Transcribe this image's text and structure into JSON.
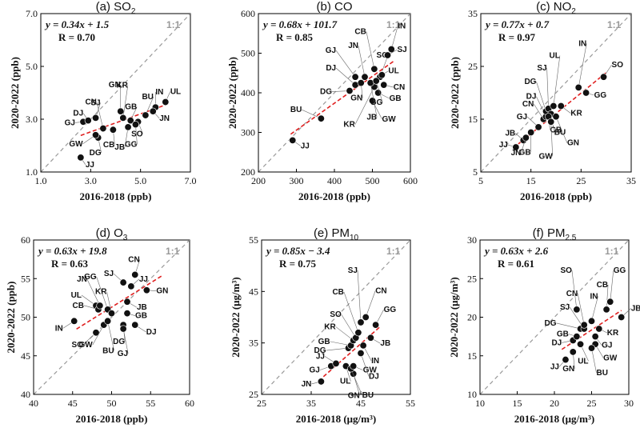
{
  "chart_data": [
    {
      "type": "scatter",
      "title_main": "(a) SO",
      "title_sub": "2",
      "title_tail": "",
      "xlabel": "2016-2018 (ppb)",
      "ylabel": "2020-2022 (ppb)",
      "xlim": [
        1.0,
        7.0
      ],
      "ylim": [
        1.0,
        7.0
      ],
      "xticks": [
        "1.0",
        "3.0",
        "5.0",
        "7.0"
      ],
      "yticks": [
        "1.0",
        "3.0",
        "5.0",
        "7.0"
      ],
      "equation": "y = 0.34x + 1.5",
      "r_text": "R = 0.70",
      "one_to_one": "1:1",
      "fit": {
        "slope": 0.34,
        "intercept": 1.5,
        "x_range": [
          2.6,
          6.1
        ]
      },
      "points": [
        {
          "label": "GJ",
          "x": 2.7,
          "y": 2.9
        },
        {
          "label": "DJ",
          "x": 2.9,
          "y": 2.95
        },
        {
          "label": "SJ",
          "x": 3.2,
          "y": 3.05
        },
        {
          "label": "CN",
          "x": 3.5,
          "y": 2.65
        },
        {
          "label": "GN",
          "x": 4.2,
          "y": 3.3
        },
        {
          "label": "KR",
          "x": 4.3,
          "y": 3.05
        },
        {
          "label": "GB",
          "x": 4.6,
          "y": 2.95
        },
        {
          "label": "BU",
          "x": 5.2,
          "y": 3.15
        },
        {
          "label": "IN",
          "x": 5.6,
          "y": 3.45
        },
        {
          "label": "UL",
          "x": 6.0,
          "y": 3.65
        },
        {
          "label": "JN",
          "x": 5.5,
          "y": 3.3
        },
        {
          "label": "SO",
          "x": 4.9,
          "y": 2.9
        },
        {
          "label": "GG",
          "x": 4.8,
          "y": 2.8
        },
        {
          "label": "JB",
          "x": 4.5,
          "y": 2.7
        },
        {
          "label": "CB",
          "x": 3.9,
          "y": 2.6
        },
        {
          "label": "DG",
          "x": 3.3,
          "y": 2.3
        },
        {
          "label": "GW",
          "x": 3.2,
          "y": 2.4
        },
        {
          "label": "JJ",
          "x": 2.6,
          "y": 1.55
        }
      ]
    },
    {
      "type": "scatter",
      "title_main": "(b) CO",
      "title_sub": "",
      "title_tail": "",
      "xlabel": "2016-2018 (ppb)",
      "ylabel": "2020-2022 (ppb)",
      "xlim": [
        200,
        600
      ],
      "ylim": [
        200,
        600
      ],
      "xticks": [
        "200",
        "300",
        "400",
        "500",
        "600"
      ],
      "yticks": [
        "200",
        "300",
        "400",
        "500",
        "600"
      ],
      "equation": "y = 0.68x + 101.7",
      "r_text": "R = 0.85",
      "one_to_one": "1:1",
      "fit": {
        "slope": 0.68,
        "intercept": 101.7,
        "x_range": [
          285,
          555
        ]
      },
      "points": [
        {
          "label": "JJ",
          "x": 290,
          "y": 280
        },
        {
          "label": "BU",
          "x": 365,
          "y": 335
        },
        {
          "label": "DG",
          "x": 440,
          "y": 405
        },
        {
          "label": "DJ",
          "x": 455,
          "y": 420
        },
        {
          "label": "GJ",
          "x": 455,
          "y": 440
        },
        {
          "label": "JN",
          "x": 480,
          "y": 440
        },
        {
          "label": "GN",
          "x": 470,
          "y": 425
        },
        {
          "label": "KR",
          "x": 505,
          "y": 415
        },
        {
          "label": "CB",
          "x": 505,
          "y": 460
        },
        {
          "label": "SO",
          "x": 520,
          "y": 440
        },
        {
          "label": "IN",
          "x": 550,
          "y": 510
        },
        {
          "label": "SJ",
          "x": 540,
          "y": 495
        },
        {
          "label": "UL",
          "x": 525,
          "y": 445
        },
        {
          "label": "CN",
          "x": 530,
          "y": 420
        },
        {
          "label": "GB",
          "x": 515,
          "y": 400
        },
        {
          "label": "GW",
          "x": 500,
          "y": 380
        },
        {
          "label": "JB",
          "x": 495,
          "y": 425
        },
        {
          "label": "GG",
          "x": 510,
          "y": 430
        }
      ]
    },
    {
      "type": "scatter",
      "title_main": "(c) NO",
      "title_sub": "2",
      "title_tail": "",
      "xlabel": "2016-2018 (ppb)",
      "ylabel": "2020-2022 (ppb)",
      "xlim": [
        5,
        35
      ],
      "ylim": [
        5,
        35
      ],
      "xticks": [
        "5",
        "15",
        "25",
        "35"
      ],
      "yticks": [
        "5",
        "15",
        "25",
        "35"
      ],
      "equation": "y = 0.77x + 0.7",
      "r_text": "R = 0.97",
      "one_to_one": "1:1",
      "fit": {
        "slope": 0.77,
        "intercept": 0.7,
        "x_range": [
          11.5,
          30
        ]
      },
      "points": [
        {
          "label": "JJ",
          "x": 12,
          "y": 9.7
        },
        {
          "label": "JB",
          "x": 13.5,
          "y": 11
        },
        {
          "label": "JN",
          "x": 14,
          "y": 11.5
        },
        {
          "label": "GB",
          "x": 15,
          "y": 12.5
        },
        {
          "label": "GJ",
          "x": 16.5,
          "y": 13.5
        },
        {
          "label": "CN",
          "x": 17.5,
          "y": 15
        },
        {
          "label": "DJ",
          "x": 18,
          "y": 15.5
        },
        {
          "label": "DG",
          "x": 18,
          "y": 16.5
        },
        {
          "label": "SJ",
          "x": 18.5,
          "y": 17
        },
        {
          "label": "UL",
          "x": 19.5,
          "y": 17.5
        },
        {
          "label": "IN",
          "x": 24.5,
          "y": 21
        },
        {
          "label": "SO",
          "x": 29.5,
          "y": 23
        },
        {
          "label": "GG",
          "x": 26,
          "y": 20
        },
        {
          "label": "KR",
          "x": 21,
          "y": 17.5
        },
        {
          "label": "BU",
          "x": 19,
          "y": 16
        },
        {
          "label": "CB",
          "x": 18.5,
          "y": 15.5
        },
        {
          "label": "GN",
          "x": 20,
          "y": 15.5
        },
        {
          "label": "GW",
          "x": 19,
          "y": 14.5
        }
      ]
    },
    {
      "type": "scatter",
      "title_main": "(d) O",
      "title_sub": "3",
      "title_tail": "",
      "xlabel": "2016-2018 (ppb)",
      "ylabel": "2020-2022 (ppb)",
      "xlim": [
        40,
        60
      ],
      "ylim": [
        40,
        60
      ],
      "xticks": [
        "40",
        "45",
        "50",
        "55",
        "60"
      ],
      "yticks": [
        "40",
        "45",
        "50",
        "55",
        "60"
      ],
      "equation": "y = 0.63x + 19.8",
      "r_text": "R = 0.63",
      "one_to_one": "1:1",
      "fit": {
        "slope": 0.63,
        "intercept": 19.8,
        "x_range": [
          45.5,
          56.5
        ]
      },
      "points": [
        {
          "label": "IN",
          "x": 45.2,
          "y": 49.5
        },
        {
          "label": "SO",
          "x": 48,
          "y": 48
        },
        {
          "label": "GW",
          "x": 49,
          "y": 49
        },
        {
          "label": "UL",
          "x": 48,
          "y": 51.5
        },
        {
          "label": "CB",
          "x": 48.3,
          "y": 51
        },
        {
          "label": "JN",
          "x": 48.5,
          "y": 51.5
        },
        {
          "label": "GG",
          "x": 49.5,
          "y": 51
        },
        {
          "label": "KR",
          "x": 50,
          "y": 50.5
        },
        {
          "label": "BU",
          "x": 49.5,
          "y": 49.5
        },
        {
          "label": "SJ",
          "x": 51.5,
          "y": 54.5
        },
        {
          "label": "CN",
          "x": 53,
          "y": 55.5
        },
        {
          "label": "JJ",
          "x": 52.5,
          "y": 54
        },
        {
          "label": "GN",
          "x": 54.5,
          "y": 53.5
        },
        {
          "label": "JB",
          "x": 52,
          "y": 52
        },
        {
          "label": "GB",
          "x": 52,
          "y": 50.5
        },
        {
          "label": "DJ",
          "x": 53,
          "y": 49
        },
        {
          "label": "DG",
          "x": 51.5,
          "y": 49
        },
        {
          "label": "GJ",
          "x": 51.5,
          "y": 48.5
        }
      ]
    },
    {
      "type": "scatter",
      "title_main": "(e) PM",
      "title_sub": "10",
      "title_tail": "",
      "xlabel": "2016-2018 (μg/m³)",
      "ylabel": "2020-2022 (μg/m³)",
      "xlim": [
        25,
        55
      ],
      "ylim": [
        25,
        55
      ],
      "xticks": [
        "25",
        "35",
        "45",
        "55"
      ],
      "yticks": [
        "25",
        "35",
        "45",
        "55"
      ],
      "equation": "y = 0.85x − 3.4",
      "r_text": "R = 0.75",
      "one_to_one": "1:1",
      "fit": {
        "slope": 0.85,
        "intercept": -3.4,
        "x_range": [
          36.5,
          49
        ]
      },
      "points": [
        {
          "label": "JN",
          "x": 37,
          "y": 27.5
        },
        {
          "label": "GJ",
          "x": 39,
          "y": 30.5
        },
        {
          "label": "JJ",
          "x": 40,
          "y": 31
        },
        {
          "label": "UL",
          "x": 42,
          "y": 30.5
        },
        {
          "label": "GN",
          "x": 43.5,
          "y": 29
        },
        {
          "label": "BU",
          "x": 43,
          "y": 30
        },
        {
          "label": "GW",
          "x": 43.5,
          "y": 30.5
        },
        {
          "label": "DG",
          "x": 42.5,
          "y": 34
        },
        {
          "label": "GB",
          "x": 43,
          "y": 34.5
        },
        {
          "label": "KR",
          "x": 43.5,
          "y": 35.5
        },
        {
          "label": "SO",
          "x": 44,
          "y": 36
        },
        {
          "label": "CB",
          "x": 44.5,
          "y": 37
        },
        {
          "label": "SJ",
          "x": 45,
          "y": 39
        },
        {
          "label": "CN",
          "x": 46,
          "y": 40
        },
        {
          "label": "GG",
          "x": 48,
          "y": 38.5
        },
        {
          "label": "JB",
          "x": 47,
          "y": 36
        },
        {
          "label": "IN",
          "x": 45.5,
          "y": 34.5
        },
        {
          "label": "DJ",
          "x": 45,
          "y": 33
        }
      ]
    },
    {
      "type": "scatter",
      "title_main": "(f) PM",
      "title_sub": "2.5",
      "title_tail": "",
      "xlabel": "2016-2018 (μg/m³)",
      "ylabel": "2020-2022 (μg/m³)",
      "xlim": [
        10,
        30
      ],
      "ylim": [
        10,
        30
      ],
      "xticks": [
        "10",
        "15",
        "20",
        "25",
        "30"
      ],
      "yticks": [
        "10",
        "15",
        "20",
        "25",
        "30"
      ],
      "equation": "y = 0.63x + 2.6",
      "r_text": "R = 0.61",
      "one_to_one": "1:1",
      "fit": {
        "slope": 0.63,
        "intercept": 2.6,
        "x_range": [
          21,
          29
        ]
      },
      "points": [
        {
          "label": "JJ",
          "x": 21.5,
          "y": 14.5
        },
        {
          "label": "GN",
          "x": 22.5,
          "y": 15.5
        },
        {
          "label": "UL",
          "x": 23.5,
          "y": 16.5
        },
        {
          "label": "DJ",
          "x": 22.5,
          "y": 17
        },
        {
          "label": "GB",
          "x": 23,
          "y": 17.5
        },
        {
          "label": "DG",
          "x": 23.5,
          "y": 18.5
        },
        {
          "label": "SJ",
          "x": 24,
          "y": 18.5
        },
        {
          "label": "CN",
          "x": 24,
          "y": 19
        },
        {
          "label": "SO",
          "x": 23,
          "y": 21
        },
        {
          "label": "IN",
          "x": 25,
          "y": 19.5
        },
        {
          "label": "CB",
          "x": 27,
          "y": 21
        },
        {
          "label": "GG",
          "x": 27.5,
          "y": 22
        },
        {
          "label": "JB",
          "x": 29,
          "y": 20
        },
        {
          "label": "KR",
          "x": 26,
          "y": 18.5
        },
        {
          "label": "GJ",
          "x": 25.5,
          "y": 17.5
        },
        {
          "label": "GW",
          "x": 25.5,
          "y": 16.5
        },
        {
          "label": "BU",
          "x": 25,
          "y": 16
        }
      ]
    }
  ]
}
